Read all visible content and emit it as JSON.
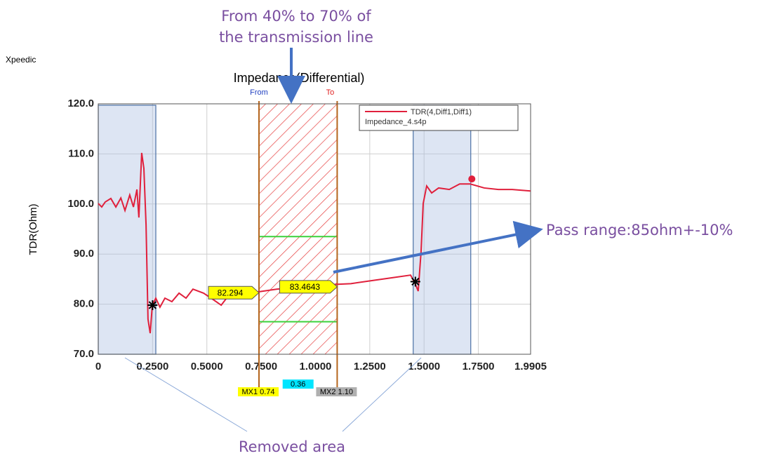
{
  "brand": "Xpeedic",
  "chart_data": {
    "type": "line",
    "title": "Impedance(Differential)",
    "ylabel": "TDR(Ohm)",
    "x": [
      0,
      0.016,
      0.032,
      0.058,
      0.081,
      0.104,
      0.123,
      0.145,
      0.162,
      0.178,
      0.187,
      0.2,
      0.21,
      0.22,
      0.229,
      0.239,
      0.249,
      0.265,
      0.284,
      0.307,
      0.339,
      0.372,
      0.404,
      0.436,
      0.485,
      0.533,
      0.566,
      0.598,
      0.646,
      0.695,
      0.743,
      0.824,
      0.905,
      0.985,
      1.066,
      1.163,
      1.26,
      1.357,
      1.438,
      1.46,
      1.473,
      1.486,
      1.496,
      1.512,
      1.535,
      1.567,
      1.616,
      1.664,
      1.713,
      1.777,
      1.842,
      1.906,
      1.99
    ],
    "series": [
      {
        "name": "TDR(4,Diff1,Diff1)",
        "color": "#e0203c",
        "values": [
          100.1,
          99.4,
          100.4,
          101.1,
          99.4,
          101.2,
          98.7,
          101.8,
          99.4,
          102.9,
          97.3,
          110.2,
          107.1,
          95.9,
          77.0,
          74.2,
          79.8,
          81.2,
          79.4,
          81.2,
          80.5,
          82.2,
          81.2,
          83.0,
          82.2,
          80.8,
          79.8,
          81.6,
          82.6,
          82.2,
          82.5,
          83.0,
          83.3,
          83.6,
          83.9,
          84.1,
          84.7,
          85.3,
          85.8,
          84.0,
          82.6,
          90.3,
          100.1,
          103.6,
          102.2,
          103.2,
          102.9,
          104.0,
          104.0,
          103.2,
          102.9,
          102.9,
          102.6
        ]
      }
    ],
    "legend_file": "Impedance_4.s4p",
    "xlim": [
      0,
      1.9905
    ],
    "ylim": [
      70,
      120
    ],
    "xticks": [
      0,
      {
        "value": 0.25,
        "label": "0.2500"
      },
      {
        "value": 0.5,
        "label": "0.5000"
      },
      {
        "value": 0.75,
        "label": "0.7500"
      },
      {
        "value": 1,
        "label": "1.0000"
      },
      {
        "value": 1.25,
        "label": "1.2500"
      },
      {
        "value": 1.5,
        "label": "1.5000"
      },
      {
        "value": 1.75,
        "label": "1.7500"
      },
      1.9905
    ],
    "yticks": [
      {
        "value": 70,
        "label": "70.0"
      },
      {
        "value": 80,
        "label": "80.0"
      },
      {
        "value": 90,
        "label": "90.0"
      },
      {
        "value": 100,
        "label": "100.0"
      },
      {
        "value": 110,
        "label": "110.0"
      },
      {
        "value": 120,
        "label": "120.0"
      }
    ],
    "grid": true,
    "removed_ranges": [
      [
        0,
        0.265
      ],
      [
        1.45,
        1.715
      ]
    ],
    "window": {
      "from_label": "From",
      "to_label": "To",
      "from": 0.74,
      "to": 1.1,
      "limits": [
        93.5,
        76.5
      ]
    },
    "markers": [
      {
        "x": 0.25,
        "y": 79.8
      },
      {
        "x": 1.46,
        "y": 84.5
      }
    ],
    "peak": {
      "x": 1.72,
      "y": 105
    },
    "value_boxes": [
      {
        "x": 0.74,
        "value": 82.294
      },
      {
        "x": 1.1,
        "value": 83.4643
      }
    ],
    "cursor_labels": [
      "MX1 0.74",
      "0.36",
      "MX2 1.10"
    ]
  },
  "annotations": {
    "window_note": [
      "From 40% to 70% of",
      "the transmission line"
    ],
    "pass_note": "Pass range:85ohm+-10%",
    "removed_note": "Removed area"
  }
}
